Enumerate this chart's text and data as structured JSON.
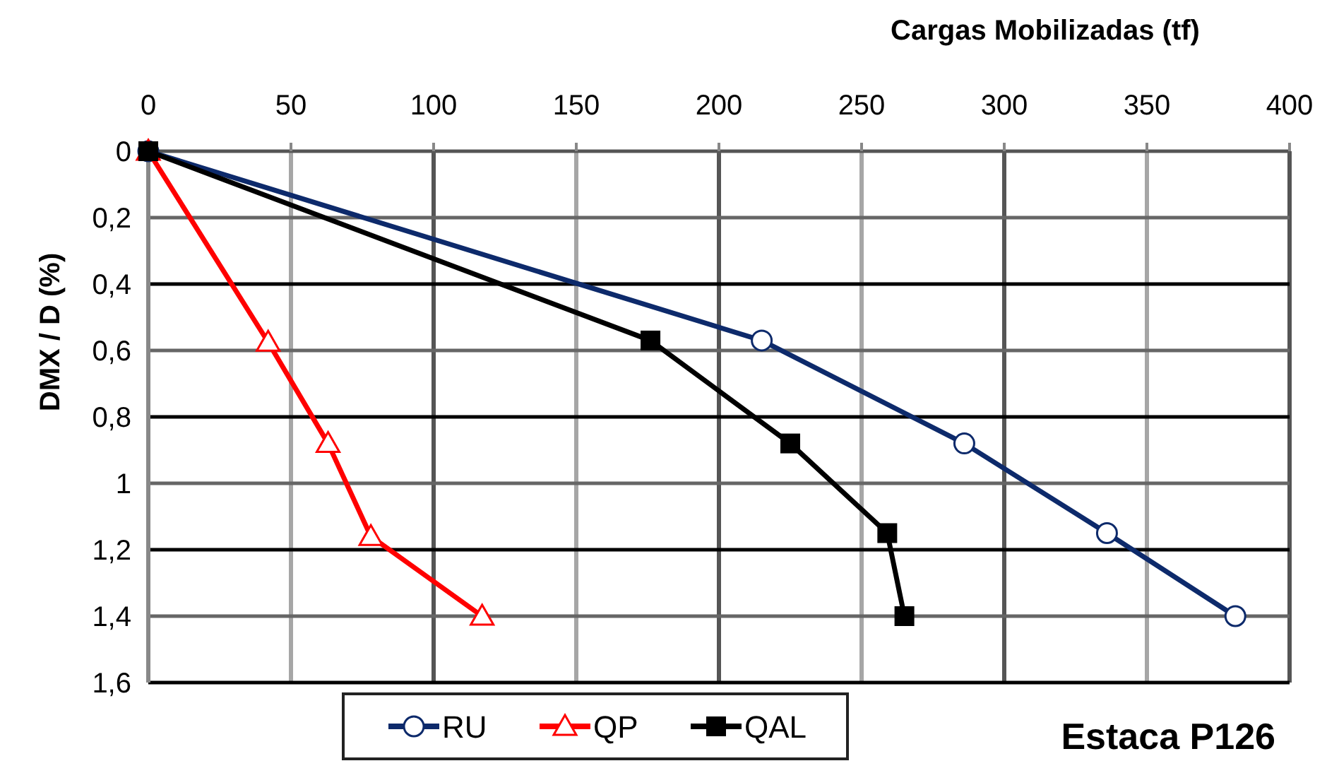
{
  "chart_data": {
    "type": "line",
    "xlabel": "Cargas Mobilizadas (tf)",
    "ylabel": "DMX / D (%)",
    "annotations": [
      "Estaca P126"
    ],
    "xlim": [
      0,
      400
    ],
    "xticks": [
      0,
      50,
      100,
      150,
      200,
      250,
      300,
      350,
      400
    ],
    "ylim": [
      1.6,
      0
    ],
    "yticks": [
      {
        "value": 0,
        "label": "0"
      },
      {
        "value": 0.2,
        "label": "0,2"
      },
      {
        "value": 0.4,
        "label": "0,4"
      },
      {
        "value": 0.6,
        "label": "0,6"
      },
      {
        "value": 0.8,
        "label": "0,8"
      },
      {
        "value": 1,
        "label": "1"
      },
      {
        "value": 1.2,
        "label": "1,2"
      },
      {
        "value": 1.4,
        "label": "1,4"
      },
      {
        "value": 1.6,
        "label": "1,6"
      }
    ],
    "grid": true,
    "legend": "bottom left",
    "line_style": "solid",
    "series": [
      {
        "name": "RU",
        "color": "#0d2a6b",
        "marker": "circle",
        "x": [
          0,
          215,
          286,
          336,
          381
        ],
        "values": [
          0,
          0.57,
          0.88,
          1.15,
          1.4
        ]
      },
      {
        "name": "QP",
        "color": "#ff0000",
        "marker": "triangle",
        "x": [
          0,
          42,
          63,
          78,
          117
        ],
        "values": [
          0,
          0.575,
          0.88,
          1.16,
          1.4
        ]
      },
      {
        "name": "QAL",
        "color": "#000000",
        "marker": "square",
        "x": [
          0,
          176,
          225,
          259,
          265
        ],
        "values": [
          0,
          0.57,
          0.88,
          1.15,
          1.4
        ]
      }
    ]
  }
}
